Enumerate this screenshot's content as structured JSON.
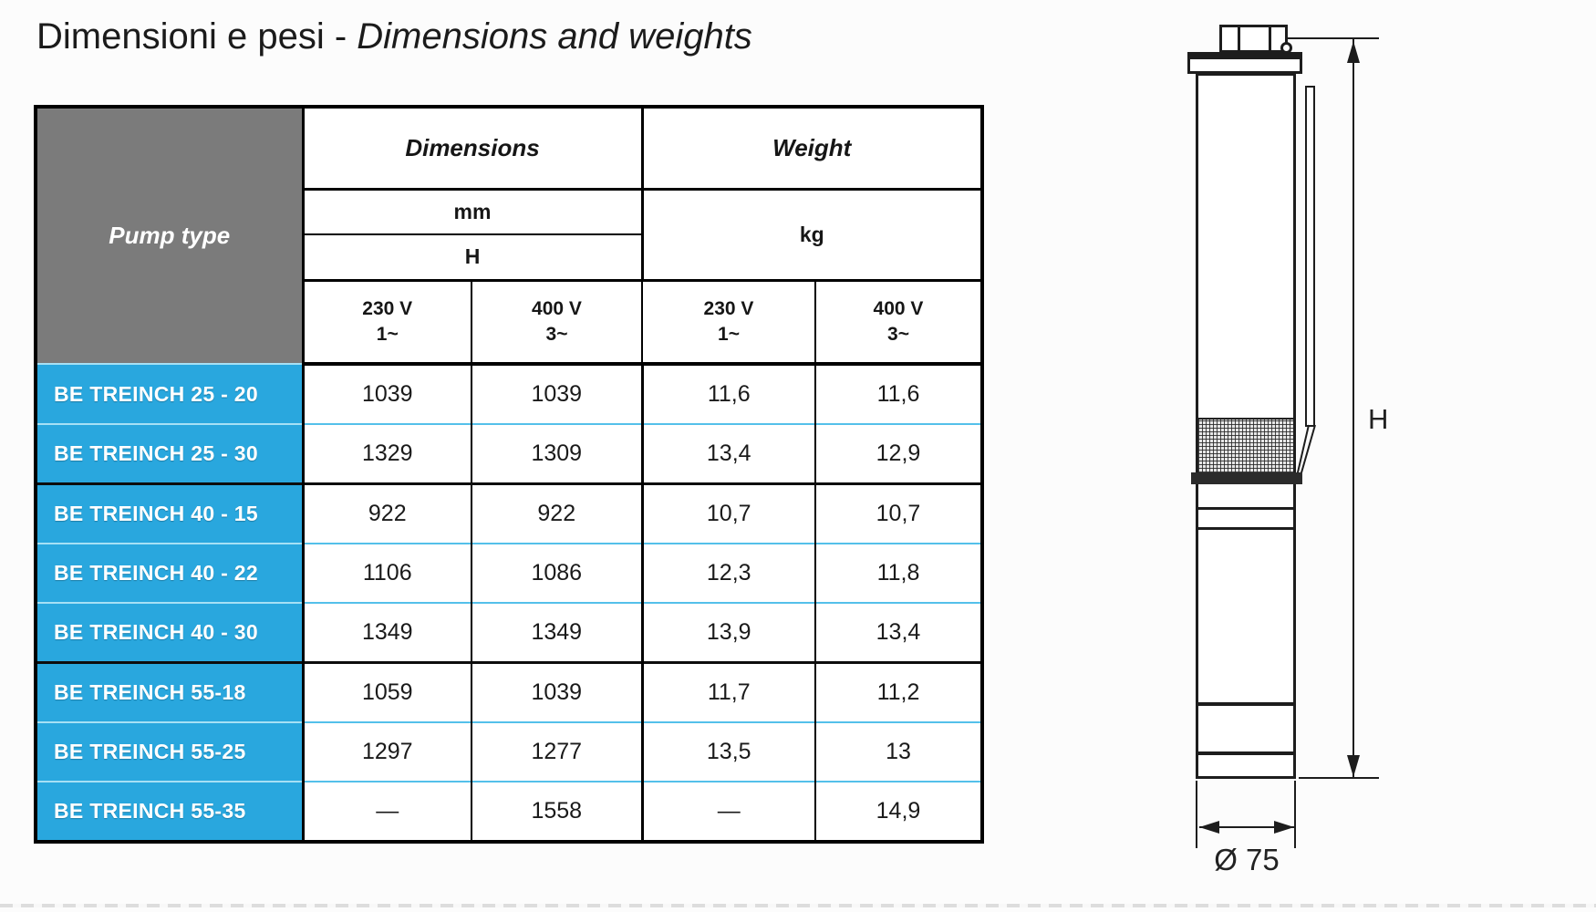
{
  "title": {
    "normal": "Dimensioni e pesi - ",
    "italic": "Dimensions and weights"
  },
  "table": {
    "pump_type_header": "Pump type",
    "dimensions_header": "Dimensions",
    "weight_header": "Weight",
    "mm_label": "mm",
    "h_label": "H",
    "kg_label": "kg",
    "voltage_headers": [
      {
        "voltage": "230 V",
        "phase": "1~"
      },
      {
        "voltage": "400 V",
        "phase": "3~"
      },
      {
        "voltage": "230 V",
        "phase": "1~"
      },
      {
        "voltage": "400 V",
        "phase": "3~"
      }
    ],
    "rows": [
      {
        "name": "BE TREINCH 25 - 20",
        "h_230": "1039",
        "h_400": "1039",
        "kg_230": "11,6",
        "kg_400": "11,6",
        "group_start": false
      },
      {
        "name": "BE TREINCH 25 - 30",
        "h_230": "1329",
        "h_400": "1309",
        "kg_230": "13,4",
        "kg_400": "12,9",
        "group_start": false
      },
      {
        "name": "BE TREINCH 40 - 15",
        "h_230": "922",
        "h_400": "922",
        "kg_230": "10,7",
        "kg_400": "10,7",
        "group_start": true
      },
      {
        "name": "BE TREINCH 40 - 22",
        "h_230": "1106",
        "h_400": "1086",
        "kg_230": "12,3",
        "kg_400": "11,8",
        "group_start": false
      },
      {
        "name": "BE TREINCH 40 - 30",
        "h_230": "1349",
        "h_400": "1349",
        "kg_230": "13,9",
        "kg_400": "13,4",
        "group_start": false
      },
      {
        "name": "BE TREINCH 55-18",
        "h_230": "1059",
        "h_400": "1039",
        "kg_230": "11,7",
        "kg_400": "11,2",
        "group_start": true
      },
      {
        "name": "BE TREINCH 55-25",
        "h_230": "1297",
        "h_400": "1277",
        "kg_230": "13,5",
        "kg_400": "13",
        "group_start": false
      },
      {
        "name": "BE TREINCH 55-35",
        "h_230": "—",
        "h_400": "1558",
        "kg_230": "—",
        "kg_400": "14,9",
        "group_start": false
      }
    ]
  },
  "diagram": {
    "height_label": "H",
    "diameter_label": "Ø 75"
  },
  "colors": {
    "accent_blue": "#29a7de",
    "header_gray": "#7b7b7b",
    "separator_cyan": "#54c0ea",
    "border_black": "#000000"
  }
}
